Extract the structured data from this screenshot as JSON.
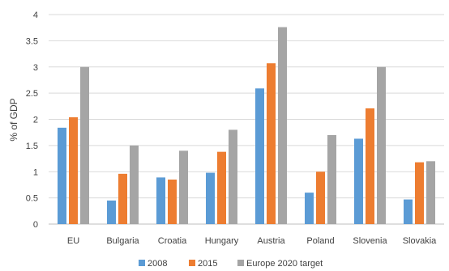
{
  "chart_data": {
    "type": "bar",
    "title": "",
    "xlabel": "",
    "ylabel": "% of GDP",
    "ylim": [
      0,
      4
    ],
    "yticks": [
      "0",
      "0.5",
      "1",
      "1.5",
      "2",
      "2.5",
      "3",
      "3.5",
      "4"
    ],
    "grid": true,
    "legend_position": "bottom",
    "categories": [
      "EU",
      "Bulgaria",
      "Croatia",
      "Hungary",
      "Austria",
      "Poland",
      "Slovenia",
      "Slovakia"
    ],
    "series": [
      {
        "name": "2008",
        "color": "#5B9BD5",
        "values": [
          1.84,
          0.45,
          0.89,
          0.98,
          2.59,
          0.6,
          1.63,
          0.47
        ]
      },
      {
        "name": "2015",
        "color": "#ED7D31",
        "values": [
          2.04,
          0.96,
          0.85,
          1.38,
          3.07,
          1.0,
          2.21,
          1.18
        ]
      },
      {
        "name": "Europe 2020 target",
        "color": "#A5A5A5",
        "values": [
          3.0,
          1.5,
          1.4,
          1.8,
          3.76,
          1.7,
          3.0,
          1.2
        ]
      }
    ]
  }
}
